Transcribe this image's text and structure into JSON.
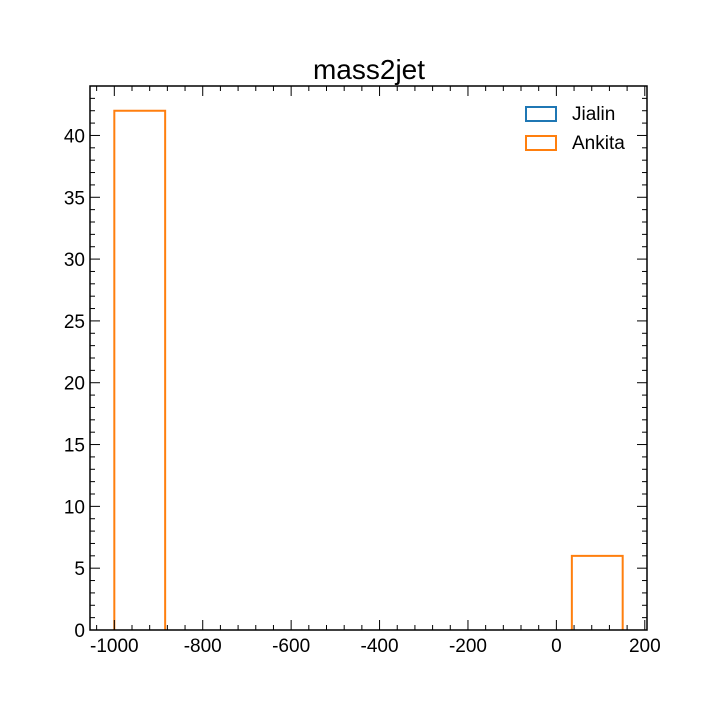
{
  "chart_data": {
    "type": "bar",
    "histogram": true,
    "title": "mass2jet",
    "xlabel": "",
    "ylabel": "",
    "xlim": [
      -1055,
      205
    ],
    "ylim": [
      0,
      44
    ],
    "x_major_ticks": [
      -1000,
      -800,
      -600,
      -400,
      -200,
      0,
      200
    ],
    "x_tick_labels": [
      "-1000",
      "-800",
      "-600",
      "-400",
      "-200",
      "0",
      "200"
    ],
    "y_major_ticks": [
      0,
      5,
      10,
      15,
      20,
      25,
      30,
      35,
      40
    ],
    "y_tick_labels": [
      "0",
      "5",
      "10",
      "15",
      "20",
      "25",
      "30",
      "35",
      "40"
    ],
    "grid": false,
    "legend_position": "top-right",
    "series": [
      {
        "name": "Jialin",
        "color": "#1f77b4",
        "histtype": "step",
        "bins": []
      },
      {
        "name": "Ankita",
        "color": "#ff7f0e",
        "histtype": "step",
        "bins": [
          {
            "x0": -1000,
            "x1": -885,
            "value": 42
          },
          {
            "x0": 35,
            "x1": 150,
            "value": 6
          }
        ]
      }
    ]
  }
}
